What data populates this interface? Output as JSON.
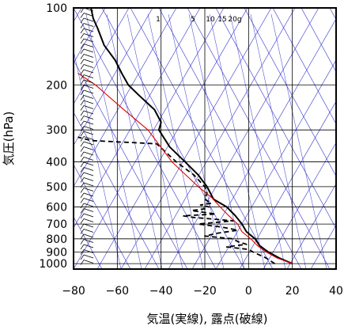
{
  "chart_data": {
    "type": "skew-t",
    "xlabel": "気温(実線), 露点(破線)",
    "ylabel": "気圧(hPa)",
    "xlim": [
      -80,
      40
    ],
    "ylim": [
      1050,
      100
    ],
    "y_scale": "log",
    "x_ticks": [
      -80,
      -60,
      -40,
      -20,
      0,
      20,
      40
    ],
    "x_tick_labels": [
      "−80",
      "−60",
      "−40",
      "−20",
      "0",
      "20",
      "40"
    ],
    "y_ticks": [
      100,
      200,
      300,
      400,
      500,
      600,
      700,
      800,
      900,
      1000
    ],
    "y_tick_labels": [
      "100",
      "200",
      "300",
      "400",
      "500",
      "600",
      "700",
      "800",
      "900",
      "1000"
    ],
    "mixing_ratio_labels": [
      "1",
      "5",
      "10",
      "15",
      "20g"
    ],
    "colors": {
      "temperature": "#000000",
      "dewpoint": "#000000",
      "parcel": "#e00000",
      "adiabats": "#3333cc",
      "grid": "#000000"
    },
    "series": [
      {
        "kind": "temperature",
        "line": "solid",
        "points": [
          [
            1000,
            20
          ],
          [
            950,
            14
          ],
          [
            900,
            9
          ],
          [
            850,
            5
          ],
          [
            800,
            3
          ],
          [
            750,
            -1
          ],
          [
            700,
            -3
          ],
          [
            650,
            -6
          ],
          [
            600,
            -10
          ],
          [
            560,
            -16
          ],
          [
            500,
            -19
          ],
          [
            450,
            -23
          ],
          [
            400,
            -29
          ],
          [
            350,
            -36
          ],
          [
            300,
            -41
          ],
          [
            280,
            -40
          ],
          [
            250,
            -43
          ],
          [
            220,
            -50
          ],
          [
            200,
            -55
          ],
          [
            180,
            -58
          ],
          [
            160,
            -61
          ],
          [
            140,
            -66
          ],
          [
            120,
            -69
          ],
          [
            110,
            -71
          ],
          [
            100,
            -72
          ]
        ]
      },
      {
        "kind": "dewpoint",
        "line": "dashed",
        "points": [
          [
            1000,
            12
          ],
          [
            950,
            8
          ],
          [
            900,
            2
          ],
          [
            880,
            0
          ],
          [
            860,
            -10
          ],
          [
            840,
            -1
          ],
          [
            820,
            -5
          ],
          [
            800,
            -7
          ],
          [
            780,
            -20
          ],
          [
            760,
            -14
          ],
          [
            740,
            -5
          ],
          [
            720,
            -12
          ],
          [
            700,
            -23
          ],
          [
            680,
            -7
          ],
          [
            660,
            -25
          ],
          [
            650,
            -30
          ],
          [
            640,
            -15
          ],
          [
            620,
            -26
          ],
          [
            610,
            -20
          ],
          [
            600,
            -18
          ],
          [
            590,
            -22
          ],
          [
            580,
            -17
          ],
          [
            560,
            -20
          ],
          [
            530,
            -19
          ],
          [
            500,
            -20
          ],
          [
            450,
            -25
          ],
          [
            400,
            -33
          ],
          [
            340,
            -42
          ],
          [
            330,
            -72
          ],
          [
            320,
            -78
          ]
        ]
      },
      {
        "kind": "parcel",
        "line": "solid",
        "points": [
          [
            1000,
            20
          ],
          [
            950,
            13
          ],
          [
            900,
            8
          ],
          [
            850,
            4
          ],
          [
            800,
            1
          ],
          [
            750,
            -3
          ],
          [
            700,
            -5
          ],
          [
            650,
            -9
          ],
          [
            600,
            -13
          ],
          [
            550,
            -17
          ],
          [
            500,
            -23
          ],
          [
            400,
            -35
          ],
          [
            300,
            -46
          ],
          [
            250,
            -57
          ],
          [
            200,
            -70
          ],
          [
            180,
            -78
          ]
        ]
      }
    ]
  }
}
